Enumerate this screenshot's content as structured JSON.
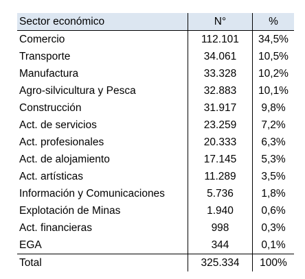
{
  "table": {
    "headers": [
      "Sector económico",
      "N°",
      "%"
    ],
    "rows": [
      [
        "Comercio",
        "112.101",
        "34,5%"
      ],
      [
        "Transporte",
        "34.061",
        "10,5%"
      ],
      [
        "Manufactura",
        "33.328",
        "10,2%"
      ],
      [
        "Agro-silvicultura y Pesca",
        "32.883",
        "10,1%"
      ],
      [
        "Construcción",
        "31.917",
        "9,8%"
      ],
      [
        "Act. de servicios",
        "23.259",
        "7,2%"
      ],
      [
        "Act. profesionales",
        "20.333",
        "6,3%"
      ],
      [
        "Act. de alojamiento",
        "17.145",
        "5,3%"
      ],
      [
        "Act. artísticas",
        "11.289",
        "3,5%"
      ],
      [
        "Información y Comunicaciones",
        "5.736",
        "1,8%"
      ],
      [
        "Explotación de Minas",
        "1.940",
        "0,6%"
      ],
      [
        "Act. financieras",
        "998",
        "0,3%"
      ],
      [
        "EGA",
        "344",
        "0,1%"
      ]
    ],
    "total": [
      "Total",
      "325.334",
      "100%"
    ]
  },
  "colors": {
    "header_background": "#dce6f1"
  }
}
